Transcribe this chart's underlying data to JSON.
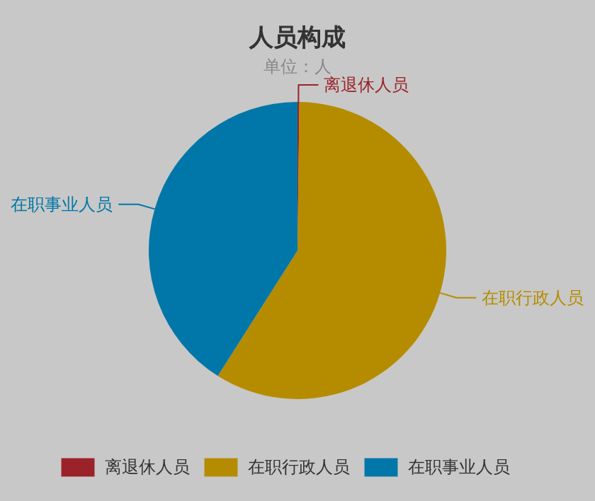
{
  "chart_data": {
    "type": "pie",
    "title": "人员构成",
    "subtitle": "单位：人",
    "categories": [
      "离退休人员",
      "在职行政人员",
      "在职事业人员"
    ],
    "values": [
      0.2,
      58.8,
      41
    ],
    "colors": [
      "#9b2229",
      "#b58c00",
      "#0077a8"
    ],
    "legend": "bottom"
  }
}
